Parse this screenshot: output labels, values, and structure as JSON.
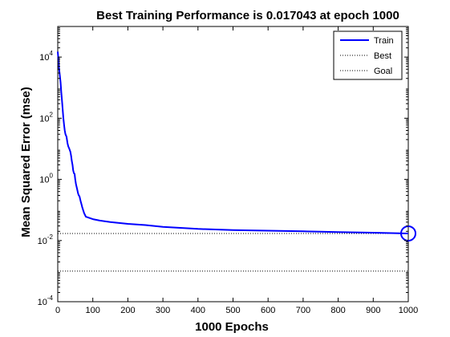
{
  "chart_data": {
    "type": "line",
    "title": "Best Training Performance is 0.017043 at epoch 1000",
    "xlabel": "1000 Epochs",
    "ylabel": "Mean Squared Error  (mse)",
    "x_scale": "linear",
    "y_scale": "log",
    "xlim": [
      0,
      1000
    ],
    "ylim": [
      0.0001,
      100000
    ],
    "x_ticks": [
      0,
      100,
      200,
      300,
      400,
      500,
      600,
      700,
      800,
      900,
      1000
    ],
    "y_ticks": [
      {
        "exp": "-4",
        "value": 0.0001
      },
      {
        "exp": "-2",
        "value": 0.01
      },
      {
        "exp": "0",
        "value": 1
      },
      {
        "exp": "2",
        "value": 100
      },
      {
        "exp": "4",
        "value": 10000
      }
    ],
    "tick_base": "10",
    "grid": false,
    "legend": {
      "placement": "top-right",
      "entries": [
        {
          "label": "Train",
          "color": "#0000ff",
          "style": "solid"
        },
        {
          "label": "Best",
          "color": "#000000",
          "style": "dotted"
        },
        {
          "label": "Goal",
          "color": "#000000",
          "style": "dotted"
        }
      ]
    },
    "series": [
      {
        "name": "Train",
        "color": "#0000ff",
        "x": [
          0,
          2,
          4,
          6,
          8,
          10,
          12,
          14,
          16,
          18,
          20,
          22,
          25,
          28,
          30,
          33,
          36,
          38,
          40,
          42,
          44,
          46,
          48,
          50,
          52,
          55,
          58,
          60,
          62,
          65,
          68,
          70,
          75,
          80,
          90,
          100,
          120,
          150,
          200,
          250,
          300,
          350,
          400,
          450,
          500,
          550,
          600,
          650,
          700,
          750,
          800,
          850,
          900,
          950,
          1000
        ],
        "y": [
          15000,
          8000,
          4000,
          2500,
          1500,
          700,
          400,
          200,
          100,
          60,
          40,
          30,
          25,
          15,
          12,
          10,
          8,
          6,
          4,
          3,
          2,
          1.6,
          1.5,
          1,
          0.7,
          0.5,
          0.35,
          0.3,
          0.28,
          0.2,
          0.15,
          0.12,
          0.08,
          0.06,
          0.055,
          0.05,
          0.045,
          0.04,
          0.035,
          0.032,
          0.028,
          0.026,
          0.024,
          0.023,
          0.022,
          0.0215,
          0.021,
          0.0205,
          0.02,
          0.0195,
          0.019,
          0.0185,
          0.018,
          0.0175,
          0.017043
        ]
      }
    ],
    "best": {
      "epoch": 1000,
      "value": 0.017043,
      "color": "#0000ff"
    },
    "goal": {
      "value": 0.001
    }
  }
}
